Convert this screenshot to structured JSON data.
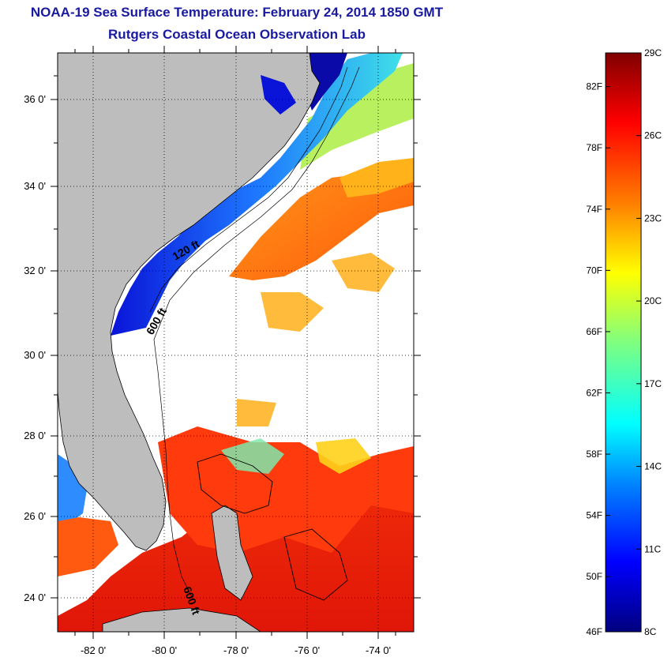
{
  "header": {
    "title": "NOAA-19 Sea Surface Temperature:  February 24, 2014 1850 GMT",
    "subtitle": "Rutgers Coastal Ocean Observation Lab"
  },
  "map": {
    "lon_range": [
      -83,
      -73
    ],
    "lat_range": [
      23,
      37
    ],
    "lat_ticks": [
      {
        "value": 24,
        "label": "24 0'"
      },
      {
        "value": 26,
        "label": "26 0'"
      },
      {
        "value": 28,
        "label": "28 0'"
      },
      {
        "value": 30,
        "label": "30 0'"
      },
      {
        "value": 32,
        "label": "32 0'"
      },
      {
        "value": 34,
        "label": "34 0'"
      },
      {
        "value": 36,
        "label": "36 0'"
      }
    ],
    "lon_ticks": [
      {
        "value": -82,
        "label": "-82 0'"
      },
      {
        "value": -80,
        "label": "-80 0'"
      },
      {
        "value": -78,
        "label": "-78 0'"
      },
      {
        "value": -76,
        "label": "-76 0'"
      },
      {
        "value": -74,
        "label": "-74 0'"
      }
    ],
    "isobath_labels": [
      "120 ft",
      "600 ft",
      "600 ft"
    ],
    "colors": {
      "land": "#bdbdbd",
      "cloud": "#ffffff",
      "coast": "#000000"
    }
  },
  "colorbar": {
    "celsius": [
      "29C",
      "26C",
      "23C",
      "20C",
      "17C",
      "14C",
      "11C",
      "8C"
    ],
    "fahrenheit": [
      "82F",
      "78F",
      "74F",
      "70F",
      "66F",
      "62F",
      "58F",
      "54F",
      "50F",
      "46F"
    ],
    "fahrenheit_values": [
      82,
      78,
      74,
      70,
      66,
      62,
      58,
      54,
      50,
      46
    ],
    "range_c": [
      8,
      29
    ],
    "colors": [
      "#00007f",
      "#0000ff",
      "#007fff",
      "#00ffff",
      "#7fff7f",
      "#ffff00",
      "#ff7f00",
      "#ff0000",
      "#7f0000"
    ]
  }
}
